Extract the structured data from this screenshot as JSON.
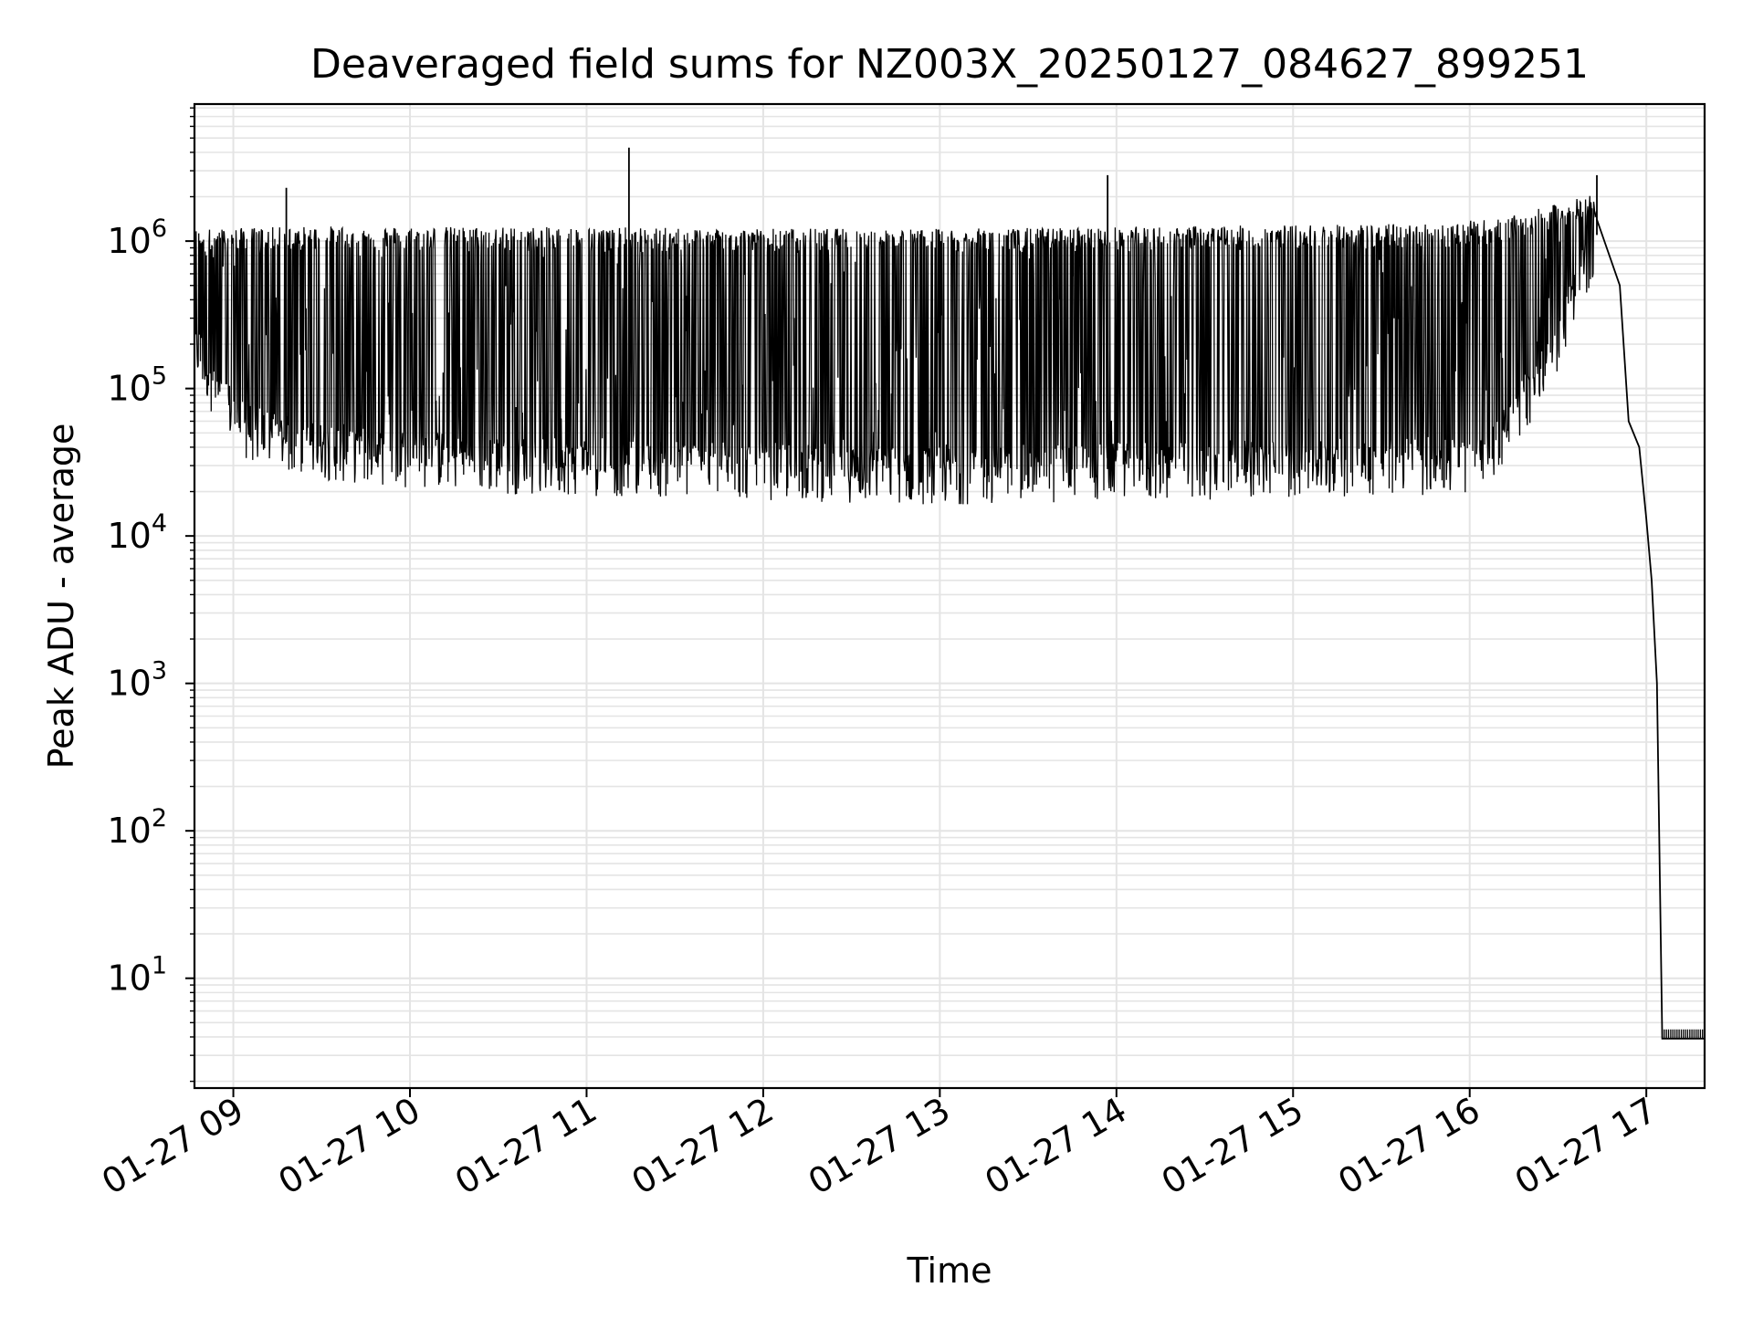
{
  "chart_data": {
    "type": "line",
    "title": "Deaveraged field sums for NZ003X_20250127_084627_899251",
    "xlabel": "Time",
    "ylabel": "Peak ADU - average",
    "xscale": "time",
    "yscale": "log",
    "xlim_hours": [
      8.78,
      17.33
    ],
    "ylim": [
      1.8,
      8500000
    ],
    "grid": true,
    "legend": "none",
    "line_color": "#000000",
    "grid_color": "#e4e4e4",
    "x_ticks": [
      {
        "hour": 9,
        "label": "01-27 09"
      },
      {
        "hour": 10,
        "label": "01-27 10"
      },
      {
        "hour": 11,
        "label": "01-27 11"
      },
      {
        "hour": 12,
        "label": "01-27 12"
      },
      {
        "hour": 13,
        "label": "01-27 13"
      },
      {
        "hour": 14,
        "label": "01-27 14"
      },
      {
        "hour": 15,
        "label": "01-27 15"
      },
      {
        "hour": 16,
        "label": "01-27 16"
      },
      {
        "hour": 17,
        "label": "01-27 17"
      }
    ],
    "y_ticks": [
      {
        "value": 10,
        "base": "10",
        "exp": "1"
      },
      {
        "value": 100,
        "base": "10",
        "exp": "2"
      },
      {
        "value": 1000,
        "base": "10",
        "exp": "3"
      },
      {
        "value": 10000,
        "base": "10",
        "exp": "4"
      },
      {
        "value": 100000,
        "base": "10",
        "exp": "5"
      },
      {
        "value": 1000000,
        "base": "10",
        "exp": "6"
      }
    ],
    "series": [
      {
        "name": "Peak ADU - average",
        "description": "dense oscillating signal approximated from the figure",
        "baseline_points": [
          [
            8.78,
            200000
          ],
          [
            8.9,
            100000
          ],
          [
            9.05,
            55000
          ],
          [
            9.4,
            40000
          ],
          [
            10.5,
            32000
          ],
          [
            13.0,
            27000
          ],
          [
            16.1,
            32000
          ],
          [
            16.5,
            200000
          ],
          [
            16.72,
            1100000
          ]
        ],
        "peak_points": [
          [
            8.78,
            1100000
          ],
          [
            9.5,
            1150000
          ],
          [
            13.0,
            1100000
          ],
          [
            15.8,
            1200000
          ],
          [
            16.2,
            1300000
          ],
          [
            16.7,
            1900000
          ]
        ],
        "spikes": [
          [
            9.3,
            2300000
          ],
          [
            11.24,
            4300000
          ],
          [
            13.95,
            2800000
          ],
          [
            16.72,
            2800000
          ]
        ],
        "decay_points": [
          [
            16.72,
            1400000
          ],
          [
            16.85,
            500000
          ],
          [
            16.9,
            60000
          ],
          [
            16.96,
            40000
          ],
          [
            17.0,
            13000
          ],
          [
            17.03,
            5000
          ],
          [
            17.06,
            1000
          ],
          [
            17.09,
            3.9
          ],
          [
            17.33,
            3.9
          ]
        ],
        "tail_value": 3.9,
        "tail_flicker_value": 4.5
      }
    ]
  }
}
